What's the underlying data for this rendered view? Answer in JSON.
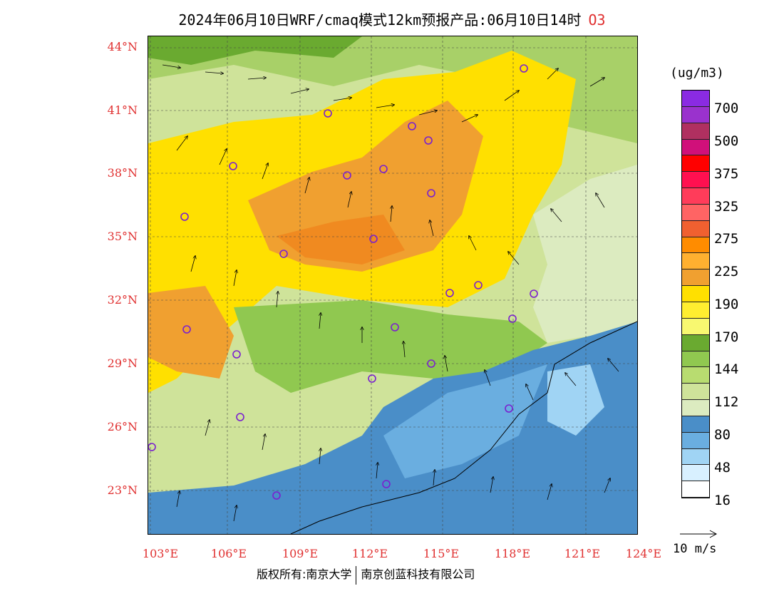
{
  "title": {
    "text": "2024年06月10日WRF/cmaq模式12km预报产品:06月10日14时",
    "variable": "O3"
  },
  "map": {
    "lat_labels": [
      "44°N",
      "41°N",
      "38°N",
      "35°N",
      "32°N",
      "29°N",
      "26°N",
      "23°N"
    ],
    "lon_labels": [
      "103°E",
      "106°E",
      "109°E",
      "112°E",
      "115°E",
      "118°E",
      "121°E",
      "124°E"
    ],
    "extent": {
      "lon_min": 103,
      "lon_max": 124,
      "lat_min": 21,
      "lat_max": 44.5
    }
  },
  "legend": {
    "unit": "(ug/m3)",
    "labels": [
      "700",
      "500",
      "375",
      "325",
      "275",
      "225",
      "190",
      "170",
      "144",
      "112",
      "80",
      "48",
      "16"
    ],
    "colors": [
      "#8a2be2",
      "#9a32cd",
      "#b03060",
      "#d0107a",
      "#ff0000",
      "#ff1050",
      "#ff3c5a",
      "#ff6464",
      "#f06030",
      "#ff8c00",
      "#ffb030",
      "#f0a030",
      "#ffe000",
      "#ffee30",
      "#f8f870",
      "#6aaa30",
      "#90c850",
      "#b8dc70",
      "#cfe39a",
      "#dcebc0",
      "#4a8ec8",
      "#6aaee0",
      "#a0d4f4",
      "#d8f0ff",
      "#ffffff"
    ]
  },
  "wind_reference": "10 m/s",
  "footer": {
    "left": "版权所有:南京大学",
    "right": "南京创蓝科技有限公司"
  }
}
